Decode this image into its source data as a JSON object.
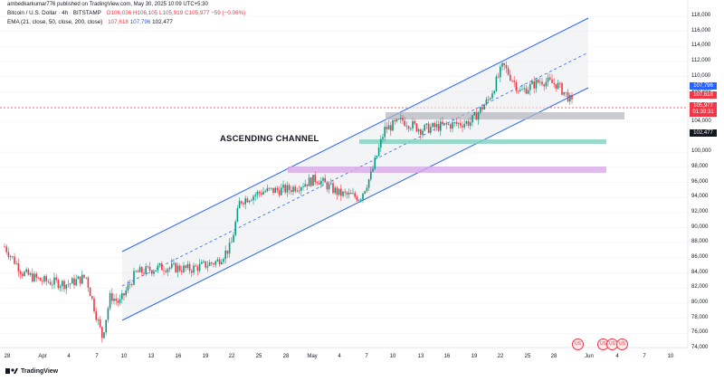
{
  "header": {
    "publisher": "ambedkarkumar776 published on TradingView.com, May 30, 2025 10:09 UTC+5:30",
    "symbol": "Bitcoin / U.S. Dollar · 4h · BITSTAMP",
    "o": "O106,036",
    "h": "H106,105",
    "l": "L105,919",
    "c": "C105,977",
    "change": "−59 (−0.06%)",
    "ema_label": "EMA (21, close, 50, close, 200, close)",
    "ema1": "107,618",
    "ema2": "107,796",
    "ema3": "102,477"
  },
  "annotation": "ASCENDING CHANNEL",
  "footer": {
    "brand": "TradingView"
  },
  "badges": {
    "ema2": {
      "text": "107,796",
      "color": "#2962ff"
    },
    "ema1": {
      "text": "107,618",
      "color": "#f23645"
    },
    "price": {
      "text": "105,977",
      "sub": "01:39:31",
      "color": "#f23645"
    },
    "ema3": {
      "text": "102,477",
      "color": "#131722"
    }
  },
  "y_ticks": [
    "118,000",
    "116,000",
    "114,000",
    "112,000",
    "110,000",
    "108,000",
    "104,000",
    "100,000",
    "98,000",
    "96,000",
    "94,000",
    "92,000",
    "90,000",
    "88,000",
    "86,000",
    "84,000",
    "82,000",
    "80,000",
    "78,000",
    "76,000",
    "74,000"
  ],
  "x_ticks": [
    "28",
    "Apr",
    "4",
    "7",
    "10",
    "13",
    "16",
    "19",
    "22",
    "25",
    "28",
    "May",
    "4",
    "7",
    "10",
    "13",
    "16",
    "19",
    "22",
    "25",
    "28",
    "Jun",
    "4",
    "7",
    "10"
  ],
  "colors": {
    "up": "#089981",
    "down": "#f23645",
    "channel": "#2962ff",
    "gray_zone": "#b2b5be",
    "teal_zone": "#7fd1c1",
    "purple_zone": "#d8a8e8"
  },
  "chart_data": {
    "type": "line",
    "title": "Bitcoin / U.S. Dollar · 4h · BITSTAMP",
    "xlabel": "",
    "ylabel": "",
    "ylim": [
      73500,
      118500
    ],
    "x": [
      "Mar 28",
      "Apr 1",
      "Apr 4",
      "Apr 7",
      "Apr 8",
      "Apr 9",
      "Apr 10",
      "Apr 13",
      "Apr 16",
      "Apr 19",
      "Apr 21",
      "Apr 22",
      "Apr 25",
      "Apr 28",
      "May 1",
      "May 4",
      "May 6",
      "May 7",
      "May 8",
      "May 10",
      "May 13",
      "May 16",
      "May 19",
      "May 20",
      "May 22",
      "May 25",
      "May 27",
      "May 28",
      "May 29",
      "May 30"
    ],
    "series": [
      {
        "values": [
          87500,
          84000,
          83000,
          78000,
          75500,
          82000,
          80500,
          84500,
          84800,
          85200,
          87000,
          93500,
          94800,
          95100,
          96500,
          94500,
          94000,
          97000,
          103000,
          104200,
          103000,
          103500,
          104000,
          107000,
          111500,
          108000,
          109500,
          109000,
          107300,
          105977
        ]
      }
    ],
    "zones": [
      {
        "from": 104500,
        "to": 105300
      },
      {
        "from": 101400,
        "to": 101900
      },
      {
        "from": 97200,
        "to": 97900
      }
    ]
  }
}
